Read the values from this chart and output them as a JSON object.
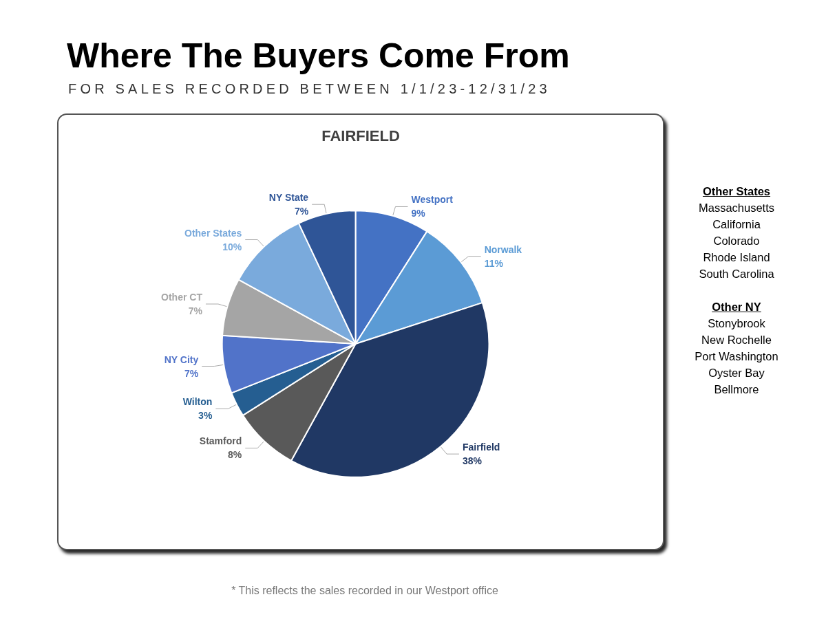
{
  "chart_data": {
    "type": "pie",
    "title": "Where The Buyers Come From",
    "subtitle": "FOR SALES RECORDED BETWEEN 1/1/23-12/31/23",
    "categories": [
      "Westport",
      "Norwalk",
      "Fairfield",
      "Stamford",
      "Wilton",
      "NY City",
      "Other CT",
      "Other States",
      "NY State"
    ],
    "values": [
      9,
      11,
      38,
      8,
      3,
      7,
      7,
      10,
      7
    ],
    "value_labels": [
      "9%",
      "11%",
      "38%",
      "8%",
      "3%",
      "7%",
      "7%",
      "10%",
      "7%"
    ],
    "colors": [
      "#4472c4",
      "#5b9bd5",
      "#203864",
      "#595959",
      "#255e91",
      "#5173c9",
      "#a5a5a5",
      "#7aaadc",
      "#2f5597"
    ],
    "annotations": [
      "FAIRFIELD",
      "Other States\nMassachusetts\nCalifornia\nColorado\nRhode Island\nSouth Carolina",
      "Other NY\nStonybrook\nNew Rochelle\nPort Washington\nOyster Bay\nBellmore",
      "* This reflects the sales recorded in our Westport office"
    ]
  }
}
